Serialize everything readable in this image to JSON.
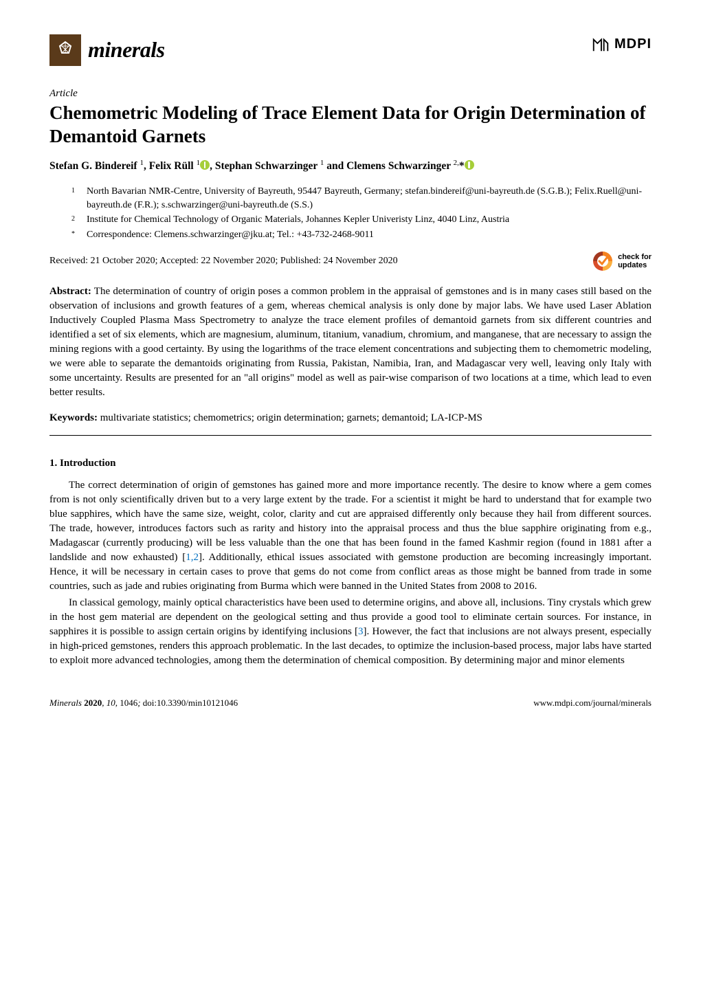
{
  "journal": {
    "name": "minerals",
    "logo_bg": "#5a3a1a",
    "publisher_logo": "MDPI"
  },
  "article": {
    "type": "Article",
    "title": "Chemometric Modeling of Trace Element Data for Origin Determination of Demantoid Garnets",
    "authors_html": "Stefan G. Bindereif <sup>1</sup>, Felix Rüll <sup>1</sup><span class='orcid-icon' data-name='orcid-icon' data-interactable='false'></span>, Stephan Schwarzinger <sup>1</sup> and Clemens Schwarzinger <sup>2,</sup>*<span class='orcid-icon' data-name='orcid-icon' data-interactable='false'></span>"
  },
  "affiliations": [
    {
      "num": "1",
      "text": "North Bavarian NMR-Centre, University of Bayreuth, 95447 Bayreuth, Germany; stefan.bindereif@uni-bayreuth.de (S.G.B.); Felix.Ruell@uni-bayreuth.de (F.R.); s.schwarzinger@uni-bayreuth.de (S.S.)"
    },
    {
      "num": "2",
      "text": "Institute for Chemical Technology of Organic Materials, Johannes Kepler Univeristy Linz, 4040 Linz, Austria"
    },
    {
      "num": "*",
      "text": "Correspondence: Clemens.schwarzinger@jku.at; Tel.: +43-732-2468-9011"
    }
  ],
  "dates": "Received: 21 October 2020; Accepted: 22 November 2020; Published: 24 November 2020",
  "check_updates": {
    "line1": "check for",
    "line2": "updates"
  },
  "abstract": {
    "label": "Abstract:",
    "text": "The determination of country of origin poses a common problem in the appraisal of gemstones and is in many cases still based on the observation of inclusions and growth features of a gem, whereas chemical analysis is only done by major labs. We have used Laser Ablation Inductively Coupled Plasma Mass Spectrometry to analyze the trace element profiles of demantoid garnets from six different countries and identified a set of six elements, which are magnesium, aluminum, titanium, vanadium, chromium, and manganese, that are necessary to assign the mining regions with a good certainty. By using the logarithms of the trace element concentrations and subjecting them to chemometric modeling, we were able to separate the demantoids originating from Russia, Pakistan, Namibia, Iran, and Madagascar very well, leaving only Italy with some uncertainty. Results are presented for an \"all origins\" model as well as pair-wise comparison of two locations at a time, which lead to even better results."
  },
  "keywords": {
    "label": "Keywords:",
    "text": "multivariate statistics; chemometrics; origin determination; garnets; demantoid; LA-ICP-MS"
  },
  "section1": {
    "heading": "1. Introduction",
    "para1": "The correct determination of origin of gemstones has gained more and more importance recently. The desire to know where a gem comes from is not only scientifically driven but to a very large extent by the trade. For a scientist it might be hard to understand that for example two blue sapphires, which have the same size, weight, color, clarity and cut are appraised differently only because they hail from different sources. The trade, however, introduces factors such as rarity and history into the appraisal process and thus the blue sapphire originating from e.g., Madagascar (currently producing) will be less valuable than the one that has been found in the famed Kashmir region (found in 1881 after a landslide and now exhausted) [",
    "cite12": "1,2",
    "para1b": "]. Additionally, ethical issues associated with gemstone production are becoming increasingly important. Hence, it will be necessary in certain cases to prove that gems do not come from conflict areas as those might be banned from trade in some countries, such as jade and rubies originating from Burma which were banned in the United States from 2008 to 2016.",
    "para2": "In classical gemology, mainly optical characteristics have been used to determine origins, and above all, inclusions. Tiny crystals which grew in the host gem material are dependent on the geological setting and thus provide a good tool to eliminate certain sources. For instance, in sapphires it is possible to assign certain origins by identifying inclusions [",
    "cite3": "3",
    "para2b": "]. However, the fact that inclusions are not always present, especially in high-priced gemstones, renders this approach problematic. In the last decades, to optimize the inclusion-based process, major labs have started to exploit more advanced technologies, among them the determination of chemical composition. By determining major and minor elements"
  },
  "footer": {
    "left_journal": "Minerals",
    "left_year": "2020",
    "left_vol": "10",
    "left_page": "1046",
    "left_doi": "doi:10.3390/min10121046",
    "right": "www.mdpi.com/journal/minerals"
  },
  "colors": {
    "cite_link": "#0070c0",
    "orcid": "#a6ce39",
    "checkmark": "#f58220"
  }
}
